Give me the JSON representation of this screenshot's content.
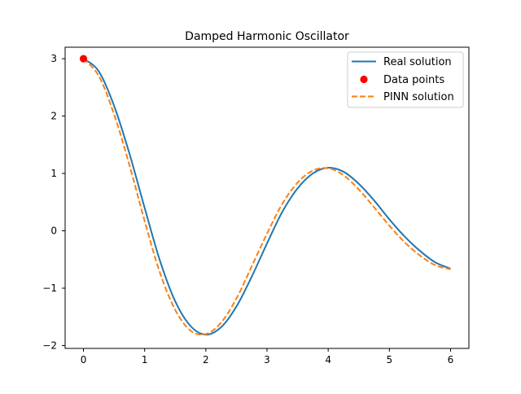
{
  "chart_data": {
    "type": "line",
    "title": "Damped Harmonic Oscillator",
    "xlabel": "",
    "ylabel": "",
    "xlim": [
      -0.3,
      6.3
    ],
    "ylim": [
      -2.05,
      3.2
    ],
    "x_ticks": [
      0,
      1,
      2,
      3,
      4,
      5,
      6
    ],
    "y_ticks": [
      -2,
      -1,
      0,
      1,
      2,
      3
    ],
    "x_tick_labels": [
      "0",
      "1",
      "2",
      "3",
      "4",
      "5",
      "6"
    ],
    "y_tick_labels": [
      "−2",
      "−1",
      "0",
      "1",
      "2",
      "3"
    ],
    "grid": false,
    "legend": {
      "position": "top-right",
      "entries": [
        {
          "label": "Real solution",
          "style": "line",
          "color": "#1f77b4"
        },
        {
          "label": "Data points",
          "style": "marker",
          "color": "#ff0000"
        },
        {
          "label": "PINN solution",
          "style": "dashed",
          "color": "#ff7f0e"
        }
      ]
    },
    "series": [
      {
        "name": "Real solution",
        "style": "solid",
        "color": "#1f77b4",
        "points": [
          [
            0,
            3.0
          ],
          [
            0.25,
            2.78
          ],
          [
            0.5,
            2.18
          ],
          [
            0.75,
            1.35
          ],
          [
            1.0,
            0.4
          ],
          [
            1.25,
            -0.52
          ],
          [
            1.5,
            -1.23
          ],
          [
            1.75,
            -1.66
          ],
          [
            2.0,
            -1.81
          ],
          [
            2.25,
            -1.68
          ],
          [
            2.5,
            -1.32
          ],
          [
            2.75,
            -0.8
          ],
          [
            3.0,
            -0.22
          ],
          [
            3.25,
            0.33
          ],
          [
            3.5,
            0.74
          ],
          [
            3.75,
            1.0
          ],
          [
            4.0,
            1.1
          ],
          [
            4.25,
            1.03
          ],
          [
            4.5,
            0.82
          ],
          [
            4.75,
            0.53
          ],
          [
            5.0,
            0.2
          ],
          [
            5.25,
            -0.1
          ],
          [
            5.5,
            -0.35
          ],
          [
            5.75,
            -0.55
          ],
          [
            6.0,
            -0.66
          ]
        ]
      },
      {
        "name": "PINN solution",
        "style": "dashed",
        "color": "#ff7f0e",
        "points": [
          [
            0,
            3.0
          ],
          [
            0.25,
            2.7
          ],
          [
            0.5,
            2.03
          ],
          [
            0.75,
            1.15
          ],
          [
            1.0,
            0.17
          ],
          [
            1.25,
            -0.73
          ],
          [
            1.5,
            -1.38
          ],
          [
            1.75,
            -1.74
          ],
          [
            2.0,
            -1.8
          ],
          [
            2.25,
            -1.6
          ],
          [
            2.5,
            -1.18
          ],
          [
            2.75,
            -0.62
          ],
          [
            3.0,
            -0.05
          ],
          [
            3.25,
            0.47
          ],
          [
            3.5,
            0.84
          ],
          [
            3.75,
            1.05
          ],
          [
            4.0,
            1.09
          ],
          [
            4.25,
            0.97
          ],
          [
            4.5,
            0.72
          ],
          [
            4.75,
            0.41
          ],
          [
            5.0,
            0.09
          ],
          [
            5.25,
            -0.2
          ],
          [
            5.5,
            -0.43
          ],
          [
            5.75,
            -0.6
          ],
          [
            6.0,
            -0.67
          ]
        ]
      }
    ],
    "data_points": {
      "name": "Data points",
      "color": "#ff0000",
      "points": [
        [
          0,
          3.0
        ]
      ]
    }
  }
}
